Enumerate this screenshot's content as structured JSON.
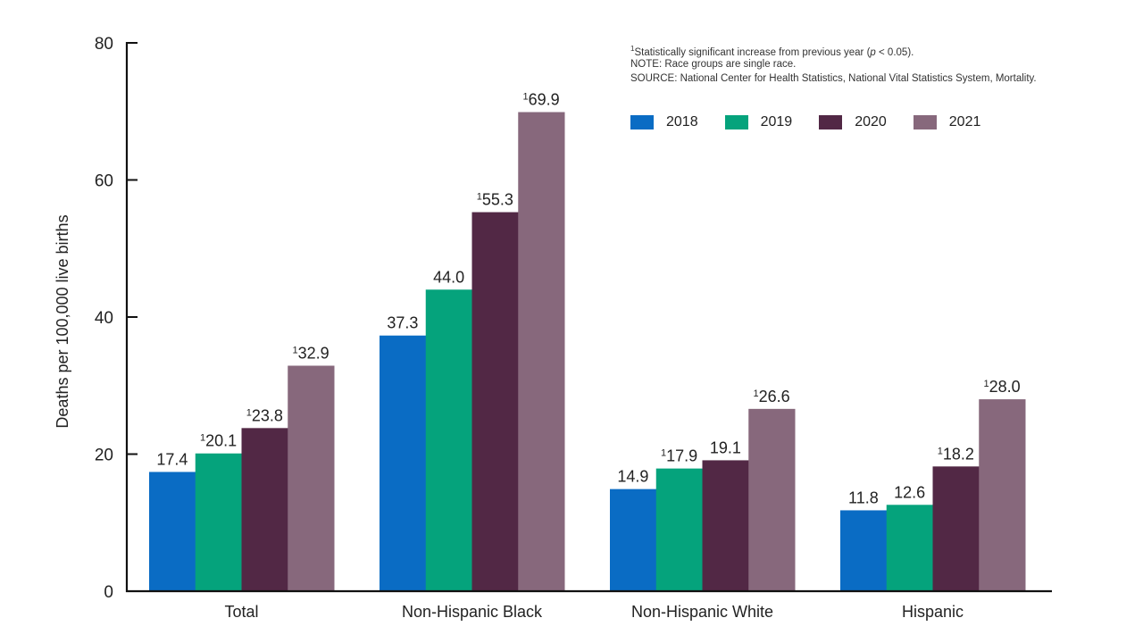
{
  "chart_data": {
    "type": "bar",
    "title": "",
    "xlabel": "",
    "ylabel": "Deaths per 100,000 live births",
    "ylim": [
      0,
      80
    ],
    "yticks": [
      0,
      20,
      40,
      60,
      80
    ],
    "categories": [
      "Total",
      "Non-Hispanic Black",
      "Non-Hispanic White",
      "Hispanic"
    ],
    "series": [
      {
        "name": "2018",
        "color": "#0a6cc4",
        "values": [
          17.4,
          37.3,
          14.9,
          11.8
        ],
        "significant": [
          false,
          false,
          false,
          false
        ]
      },
      {
        "name": "2019",
        "color": "#05a37c",
        "values": [
          20.1,
          44.0,
          17.9,
          12.6
        ],
        "significant": [
          true,
          false,
          true,
          false
        ]
      },
      {
        "name": "2020",
        "color": "#522845",
        "values": [
          23.8,
          55.3,
          19.1,
          18.2
        ],
        "significant": [
          true,
          true,
          false,
          true
        ]
      },
      {
        "name": "2021",
        "color": "#87687c",
        "values": [
          32.9,
          69.9,
          26.6,
          28.0
        ],
        "significant": [
          true,
          true,
          true,
          true
        ]
      }
    ],
    "significance_marker": "1",
    "legend_position": "top-right",
    "grid": false
  },
  "notes": {
    "footnote_marker": "1",
    "footnote_text": "Statistically significant increase from previous year (",
    "footnote_p": "p",
    "footnote_tail": " < 0.05).",
    "note": "NOTE: Race groups are single race.",
    "source": "SOURCE: National Center for Health Statistics, National Vital Statistics System, Mortality."
  }
}
